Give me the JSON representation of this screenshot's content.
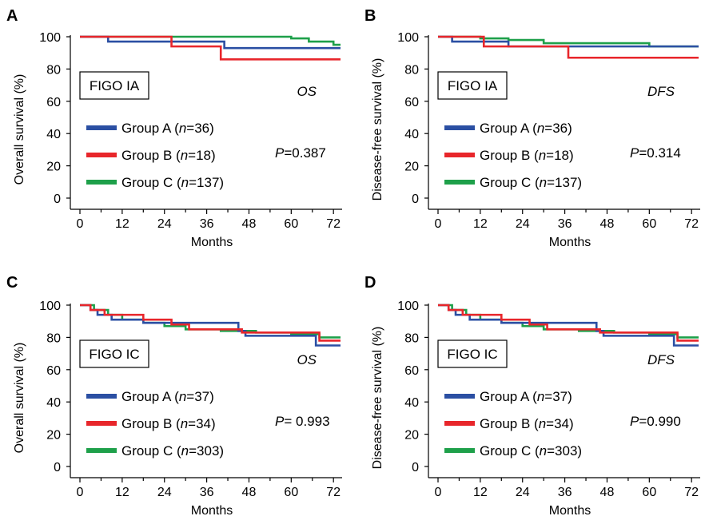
{
  "colors": {
    "group_a": "#2b4fa3",
    "group_b": "#e8262b",
    "group_c": "#1ea04a",
    "axis": "#000000"
  },
  "chart_data": [
    {
      "panel_label": "A",
      "type": "line",
      "step": true,
      "title": "",
      "xlabel": "Months",
      "ylabel": "Overall survival (%)",
      "xlim": [
        0,
        74
      ],
      "ylim": [
        0,
        100
      ],
      "xticks": [
        0,
        12,
        24,
        36,
        48,
        60,
        72
      ],
      "yticks": [
        0,
        20,
        40,
        60,
        80,
        100
      ],
      "stage_label": "FIGO IA",
      "endpoint": "OS",
      "p_prefix": "P",
      "p_value": "=0.387",
      "legend_position": "left-middle",
      "series": [
        {
          "name": "Group A",
          "n": "36",
          "color_key": "group_a",
          "x": [
            0,
            8,
            41,
            74
          ],
          "y": [
            100,
            97,
            93,
            93
          ]
        },
        {
          "name": "Group B",
          "n": "18",
          "color_key": "group_b",
          "x": [
            0,
            26,
            40,
            74
          ],
          "y": [
            100,
            94,
            86,
            86
          ]
        },
        {
          "name": "Group C",
          "n": "137",
          "color_key": "group_c",
          "x": [
            0,
            60,
            65,
            72,
            74
          ],
          "y": [
            100,
            99,
            97,
            95,
            95
          ]
        }
      ]
    },
    {
      "panel_label": "B",
      "type": "line",
      "step": true,
      "title": "",
      "xlabel": "Months",
      "ylabel": "Disease-free survival (%)",
      "xlim": [
        0,
        74
      ],
      "ylim": [
        0,
        100
      ],
      "xticks": [
        0,
        12,
        24,
        36,
        48,
        60,
        72
      ],
      "yticks": [
        0,
        20,
        40,
        60,
        80,
        100
      ],
      "stage_label": "FIGO IA",
      "endpoint": "DFS",
      "p_prefix": "P",
      "p_value": "=0.314",
      "legend_position": "left-middle",
      "series": [
        {
          "name": "Group A",
          "n": "36",
          "color_key": "group_a",
          "x": [
            0,
            4,
            20,
            74
          ],
          "y": [
            100,
            97,
            94,
            94
          ]
        },
        {
          "name": "Group B",
          "n": "18",
          "color_key": "group_b",
          "x": [
            0,
            13,
            37,
            74
          ],
          "y": [
            100,
            94,
            87,
            87
          ]
        },
        {
          "name": "Group C",
          "n": "137",
          "color_key": "group_c",
          "x": [
            0,
            12,
            20,
            30,
            60,
            74
          ],
          "y": [
            100,
            99,
            98,
            96,
            94,
            94
          ]
        }
      ]
    },
    {
      "panel_label": "C",
      "type": "line",
      "step": true,
      "title": "",
      "xlabel": "Months",
      "ylabel": "Overall survival (%)",
      "xlim": [
        0,
        74
      ],
      "ylim": [
        0,
        100
      ],
      "xticks": [
        0,
        12,
        24,
        36,
        48,
        60,
        72
      ],
      "yticks": [
        0,
        20,
        40,
        60,
        80,
        100
      ],
      "stage_label": "FIGO IC",
      "endpoint": "OS",
      "p_prefix": "P",
      "p_value": "= 0.993",
      "legend_position": "left-middle",
      "series": [
        {
          "name": "Group A",
          "n": "37",
          "color_key": "group_a",
          "x": [
            0,
            3,
            5,
            9,
            18,
            45,
            47,
            67,
            74
          ],
          "y": [
            100,
            97,
            94,
            91,
            89,
            84,
            81,
            75,
            75
          ]
        },
        {
          "name": "Group B",
          "n": "34",
          "color_key": "group_b",
          "x": [
            0,
            3,
            7,
            18,
            26,
            31,
            46,
            68,
            74
          ],
          "y": [
            100,
            97,
            94,
            91,
            88,
            85,
            83,
            78,
            78
          ]
        },
        {
          "name": "Group C",
          "n": "303",
          "color_key": "group_c",
          "x": [
            0,
            4,
            8,
            12,
            18,
            24,
            30,
            40,
            50,
            60,
            68,
            74
          ],
          "y": [
            100,
            97,
            94,
            91,
            89,
            87,
            85,
            84,
            83,
            82,
            80,
            80
          ]
        }
      ]
    },
    {
      "panel_label": "D",
      "type": "line",
      "step": true,
      "title": "",
      "xlabel": "Months",
      "ylabel": "Disease-free survival (%)",
      "xlim": [
        0,
        74
      ],
      "ylim": [
        0,
        100
      ],
      "xticks": [
        0,
        12,
        24,
        36,
        48,
        60,
        72
      ],
      "yticks": [
        0,
        20,
        40,
        60,
        80,
        100
      ],
      "stage_label": "FIGO IC",
      "endpoint": "DFS",
      "p_prefix": "P",
      "p_value": "=0.990",
      "legend_position": "left-middle",
      "series": [
        {
          "name": "Group A",
          "n": "37",
          "color_key": "group_a",
          "x": [
            0,
            3,
            5,
            9,
            18,
            45,
            47,
            67,
            74
          ],
          "y": [
            100,
            97,
            94,
            91,
            89,
            84,
            81,
            75,
            75
          ]
        },
        {
          "name": "Group B",
          "n": "34",
          "color_key": "group_b",
          "x": [
            0,
            3,
            7,
            18,
            26,
            31,
            46,
            68,
            74
          ],
          "y": [
            100,
            97,
            94,
            91,
            88,
            85,
            83,
            78,
            78
          ]
        },
        {
          "name": "Group C",
          "n": "303",
          "color_key": "group_c",
          "x": [
            0,
            4,
            8,
            12,
            18,
            24,
            30,
            40,
            50,
            60,
            68,
            74
          ],
          "y": [
            100,
            97,
            94,
            91,
            89,
            87,
            85,
            84,
            83,
            82,
            80,
            80
          ]
        }
      ]
    }
  ]
}
